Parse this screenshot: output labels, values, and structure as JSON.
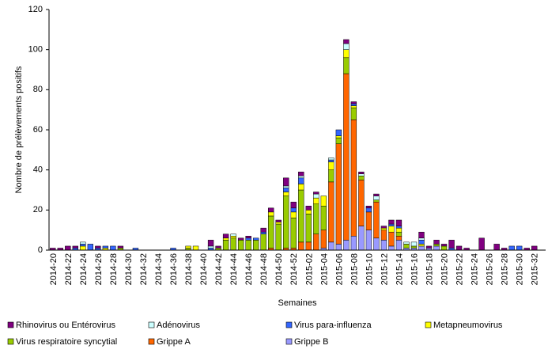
{
  "chart_data": {
    "type": "stacked-bar",
    "y_label": "Nombre de prélèvements positifs",
    "x_label": "Semaines",
    "categories": [
      "2014-20",
      null,
      "2014-22",
      null,
      "2014-24",
      null,
      "2014-26",
      null,
      "2014-28",
      null,
      "2014-30",
      null,
      "2014-32",
      null,
      "2014-34",
      null,
      "2014-36",
      null,
      "2014-38",
      null,
      "2014-40",
      null,
      "2014-42",
      null,
      "2014-44",
      null,
      "2014-46",
      null,
      "2014-48",
      null,
      "2014-50",
      null,
      "2014-52",
      null,
      "2015-02",
      null,
      "2015-04",
      null,
      "2015-06",
      null,
      "2015-08",
      null,
      "2015-10",
      null,
      "2015-12",
      null,
      "2015-14",
      null,
      "2015-16",
      null,
      "2015-18",
      null,
      "2015-20",
      null,
      "2015-22",
      null,
      "2015-24",
      null,
      "2015-26",
      null,
      "2015-28",
      null,
      "2015-30",
      null,
      "2015-32",
      null
    ],
    "series": [
      {
        "name": "Rhinovirus ou Entérovirus",
        "color": "#800080",
        "values": [
          1,
          1,
          2,
          1,
          0,
          0,
          1,
          0,
          0,
          1,
          0,
          0,
          0,
          0,
          0,
          0,
          0,
          0,
          0,
          0,
          0,
          3,
          1,
          2,
          0,
          1,
          1,
          0,
          2,
          2,
          1,
          4,
          3,
          2,
          2,
          1,
          0,
          0,
          0,
          2,
          1,
          1,
          1,
          1,
          1,
          2,
          3,
          0,
          0,
          3,
          1,
          2,
          1,
          4,
          2,
          1,
          0,
          6,
          0,
          3,
          1,
          0,
          0,
          1,
          2,
          0
        ]
      },
      {
        "name": "Adénovirus",
        "color": "#ccffff",
        "values": [
          0,
          0,
          0,
          0,
          1,
          0,
          0,
          0,
          0,
          0,
          0,
          0,
          0,
          0,
          0,
          0,
          0,
          0,
          0,
          0,
          0,
          1,
          0,
          0,
          1,
          0,
          0,
          0,
          0,
          0,
          0,
          1,
          0,
          1,
          0,
          2,
          0,
          1,
          0,
          3,
          0,
          1,
          0,
          2,
          0,
          0,
          0,
          1,
          2,
          1,
          0,
          0,
          0,
          0,
          0,
          0,
          0,
          0,
          0,
          0,
          0,
          0,
          0,
          0,
          0,
          0
        ]
      },
      {
        "name": "Virus para-influenza",
        "color": "#3366ff",
        "values": [
          0,
          0,
          0,
          1,
          1,
          3,
          1,
          1,
          2,
          0,
          0,
          1,
          0,
          0,
          0,
          0,
          1,
          0,
          0,
          0,
          0,
          1,
          0,
          0,
          0,
          0,
          1,
          1,
          1,
          0,
          0,
          2,
          2,
          3,
          0,
          0,
          0,
          1,
          3,
          0,
          1,
          0,
          2,
          0,
          0,
          1,
          1,
          0,
          0,
          2,
          0,
          0,
          0,
          1,
          0,
          0,
          0,
          0,
          0,
          0,
          0,
          2,
          2,
          0,
          0,
          0
        ]
      },
      {
        "name": "Metapneumovirus",
        "color": "#ffff00",
        "values": [
          0,
          0,
          0,
          0,
          2,
          0,
          0,
          1,
          0,
          0,
          0,
          0,
          0,
          0,
          0,
          0,
          0,
          0,
          1,
          2,
          0,
          0,
          0,
          1,
          1,
          0,
          0,
          0,
          0,
          2,
          1,
          2,
          3,
          3,
          2,
          3,
          5,
          4,
          1,
          4,
          1,
          0,
          0,
          0,
          1,
          3,
          2,
          0,
          0,
          1,
          0,
          0,
          0,
          0,
          0,
          0,
          0,
          0,
          0,
          0,
          0,
          0,
          0,
          0,
          0,
          0
        ]
      },
      {
        "name": "Virus respiratoire syncytial",
        "color": "#99cc00",
        "values": [
          0,
          0,
          0,
          0,
          0,
          0,
          0,
          0,
          0,
          1,
          0,
          0,
          0,
          0,
          0,
          0,
          0,
          0,
          1,
          0,
          0,
          0,
          1,
          5,
          6,
          5,
          5,
          5,
          8,
          16,
          13,
          26,
          15,
          26,
          14,
          15,
          12,
          6,
          3,
          8,
          6,
          2,
          0,
          1,
          0,
          0,
          2,
          2,
          1,
          0,
          0,
          1,
          2,
          0,
          0,
          0,
          0,
          0,
          0,
          0,
          0,
          0,
          0,
          0,
          0,
          0
        ]
      },
      {
        "name": "Grippe A",
        "color": "#ff6600",
        "values": [
          0,
          0,
          0,
          0,
          0,
          0,
          0,
          0,
          0,
          0,
          0,
          0,
          0,
          0,
          0,
          0,
          0,
          0,
          0,
          0,
          0,
          0,
          0,
          0,
          0,
          0,
          0,
          0,
          0,
          1,
          0,
          1,
          1,
          4,
          4,
          8,
          9,
          30,
          50,
          83,
          58,
          23,
          9,
          18,
          5,
          7,
          2,
          0,
          0,
          0,
          0,
          0,
          0,
          0,
          0,
          0,
          0,
          0,
          0,
          0,
          0,
          0,
          0,
          0,
          0,
          0
        ]
      },
      {
        "name": "Grippe B",
        "color": "#9999ff",
        "values": [
          0,
          0,
          0,
          0,
          0,
          0,
          0,
          0,
          0,
          0,
          0,
          0,
          0,
          0,
          0,
          0,
          0,
          0,
          0,
          0,
          0,
          0,
          0,
          0,
          0,
          0,
          0,
          0,
          0,
          0,
          0,
          0,
          0,
          0,
          0,
          0,
          1,
          4,
          3,
          5,
          7,
          12,
          10,
          6,
          5,
          2,
          5,
          1,
          1,
          2,
          1,
          2,
          0,
          0,
          0,
          0,
          0,
          0,
          0,
          0,
          0,
          0,
          0,
          0,
          0,
          0
        ]
      }
    ],
    "ylim": [
      0,
      120
    ],
    "yticks": [
      0,
      20,
      40,
      60,
      80,
      100,
      120
    ],
    "grid": false
  }
}
